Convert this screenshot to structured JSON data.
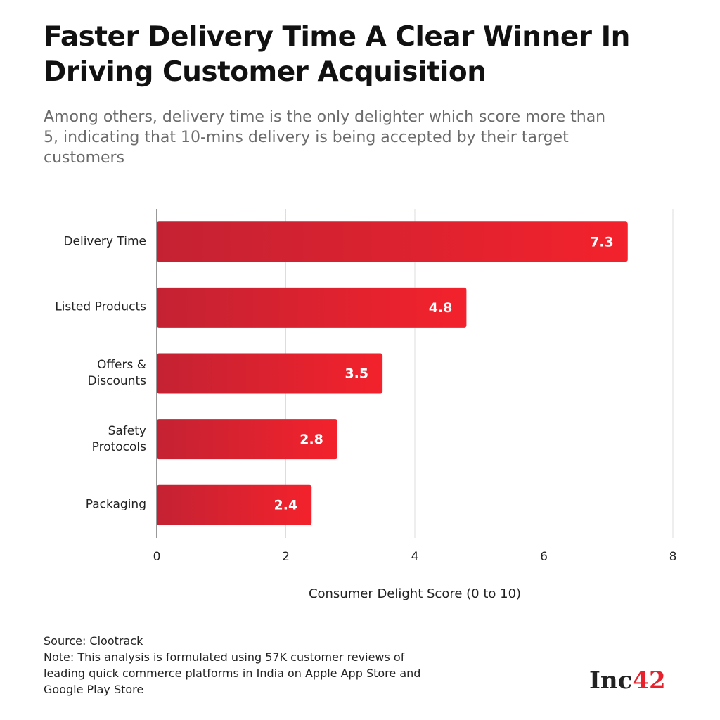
{
  "chart_data": {
    "type": "bar",
    "orientation": "horizontal",
    "title": "Faster Delivery Time A Clear Winner In Driving Customer Acquisition",
    "subtitle": "Among others, delivery time is the only delighter which score more than 5, indicating that 10-mins delivery is being accepted by their target customers",
    "categories": [
      "Delivery Time",
      "Listed Products",
      "Offers &\nDiscounts",
      "Safety\nProtocols",
      "Packaging"
    ],
    "values": [
      7.3,
      4.8,
      3.5,
      2.8,
      2.4
    ],
    "colors": [
      "#c42233",
      "#f3222c"
    ],
    "xlim": [
      0,
      8
    ],
    "xticks": [
      0,
      2,
      4,
      6,
      8
    ],
    "grid": true,
    "xlabel": "Consumer Delight Score (0 to 10)",
    "source": "Source: Clootrack",
    "note": "Note: This analysis is formulated using 57K customer reviews of leading quick commerce platforms in India on Apple App Store and Google Play Store"
  },
  "logo": {
    "text": "Inc",
    "accent": "42"
  }
}
